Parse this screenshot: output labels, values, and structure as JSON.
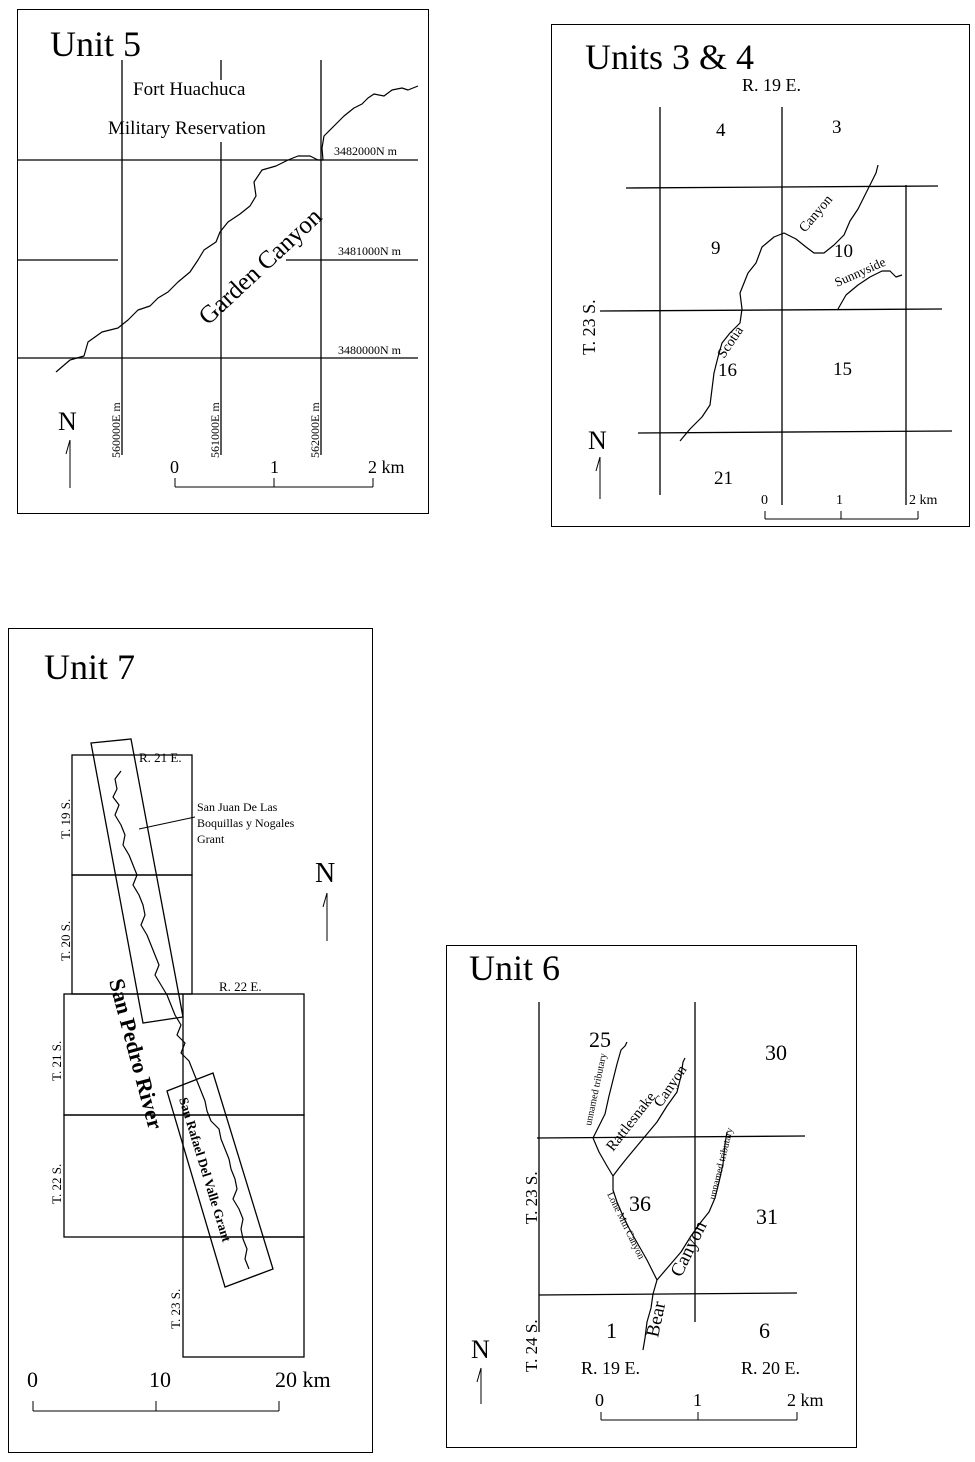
{
  "unit5": {
    "title": "Unit 5",
    "reservation_line1": "Fort Huachuca",
    "reservation_line2": "Military Reservation",
    "canyon": "Garden Canyon",
    "northings": [
      "3482000N m",
      "3481000N m",
      "3480000N m"
    ],
    "eastings": [
      "560000E m",
      "561000E m",
      "562000E m"
    ],
    "north": "N",
    "scale": [
      "0",
      "1",
      "2 km"
    ]
  },
  "units34": {
    "title": "Units 3 & 4",
    "range": "R. 19 E.",
    "township": "T. 23 S.",
    "sections": [
      "4",
      "3",
      "9",
      "10",
      "16",
      "15",
      "21"
    ],
    "canyon": "Canyon",
    "scotia": "Scotia",
    "sunnyside": "Sunnyside",
    "north": "N",
    "scale": [
      "0",
      "1",
      "2 km"
    ]
  },
  "unit7": {
    "title": "Unit 7",
    "ranges": [
      "R. 21 E.",
      "R. 22 E."
    ],
    "townships": [
      "T. 19 S.",
      "T. 20 S.",
      "T. 21 S.",
      "T. 22 S.",
      "T. 23 S."
    ],
    "grant1_line1": "San Juan De Las",
    "grant1_line2": "Boquillas y Nogales",
    "grant1_line3": "Grant",
    "grant2": "San Rafael Del Valle Grant",
    "river": "San Pedro River",
    "north": "N",
    "scale": [
      "0",
      "10",
      "20 km"
    ]
  },
  "unit6": {
    "title": "Unit 6",
    "sections": [
      "25",
      "30",
      "36",
      "31",
      "1",
      "6"
    ],
    "townships": [
      "T. 23 S.",
      "T. 24 S."
    ],
    "ranges": [
      "R. 19 E.",
      "R. 20 E."
    ],
    "trib_left": "unnamed tributary",
    "trib_right": "unnamed tributary",
    "rattlesnake1": "Rattlesnake",
    "rattlesnake2": "Canyon",
    "lone_mtn": "Lone Mtn Canyon",
    "canyon": "Canyon",
    "bear": "Bear",
    "north": "N",
    "scale": [
      "0",
      "1",
      "2 km"
    ]
  }
}
